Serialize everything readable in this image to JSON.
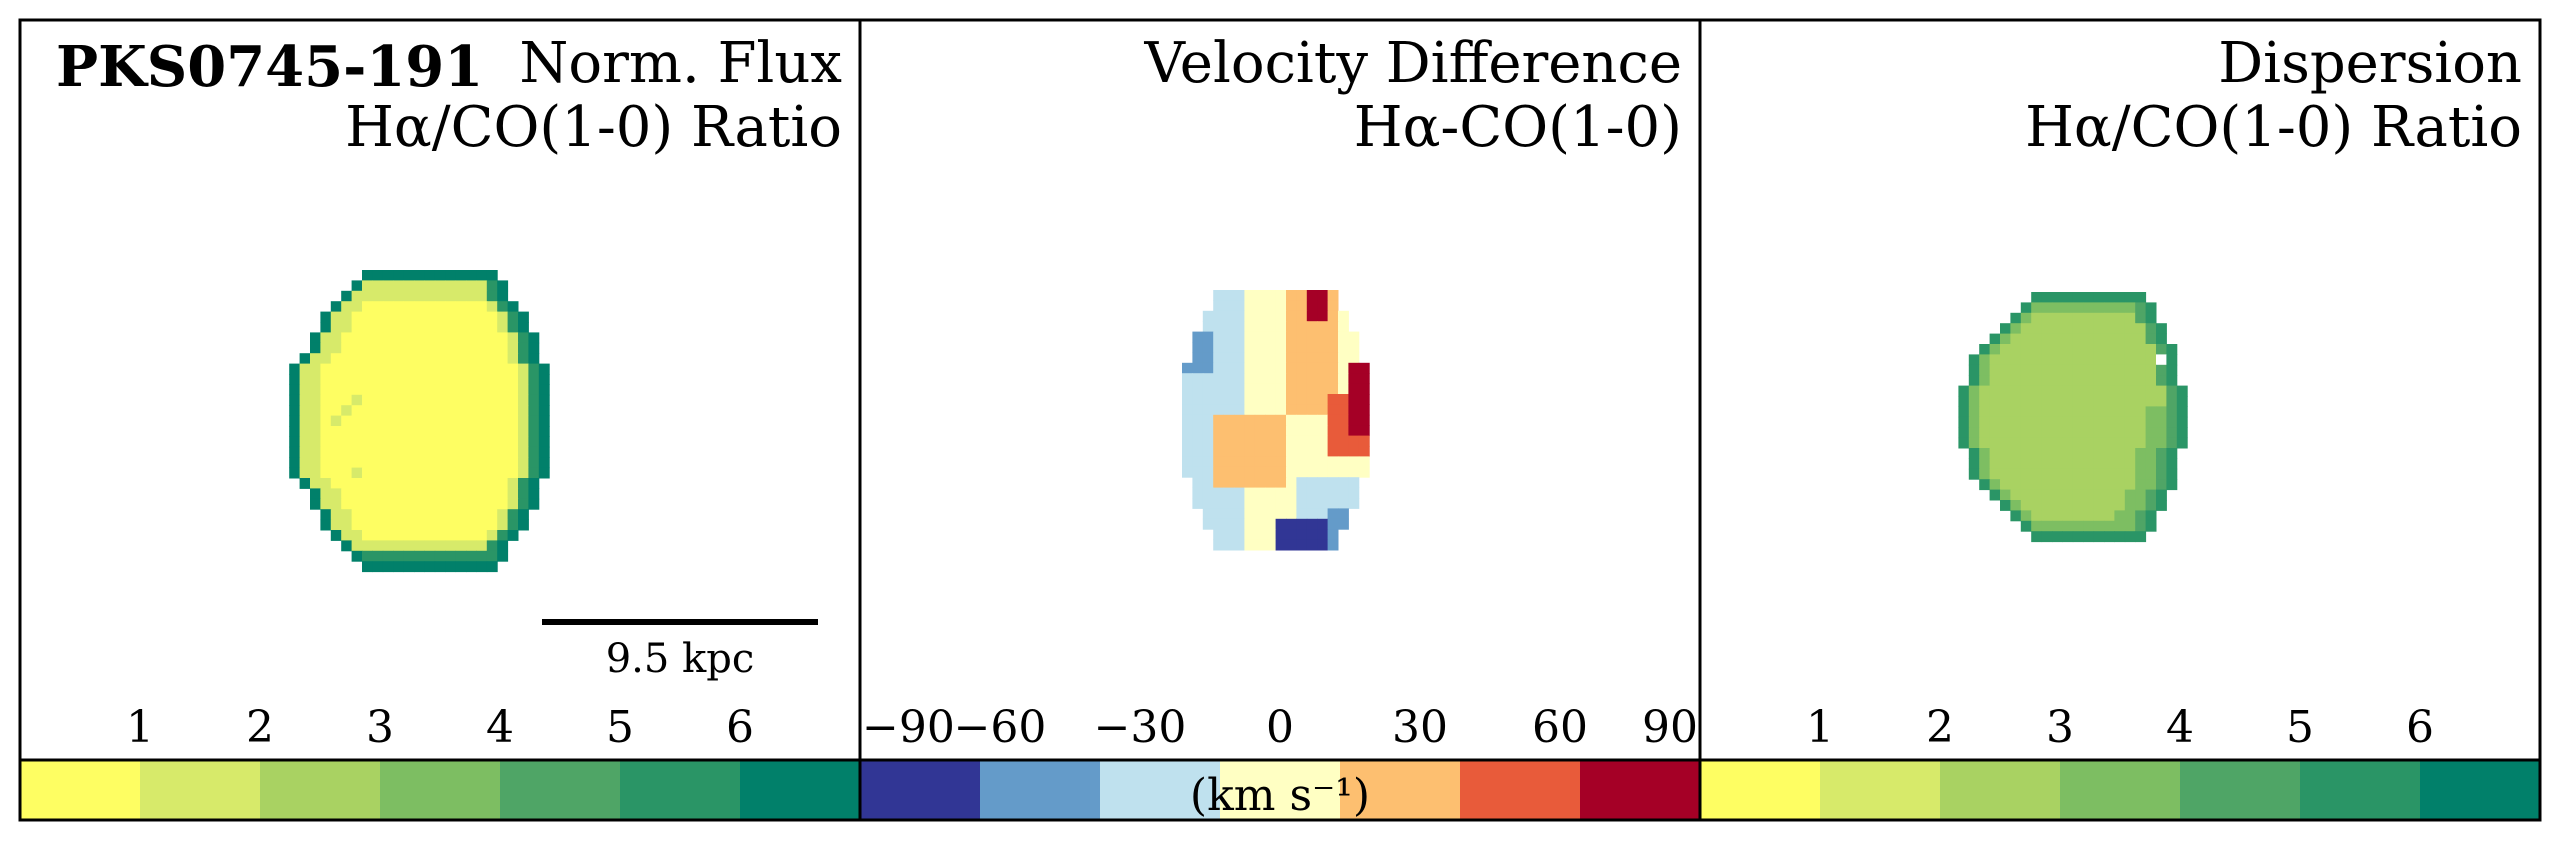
{
  "chart_data": [
    {
      "type": "heatmap",
      "object_name": "PKS0745-191",
      "title_lines": [
        "Norm. Flux",
        "Hα/CO(1-0) Ratio"
      ],
      "scale_bar_label": "9.5 kpc",
      "colorbar": {
        "ticks": [
          "1",
          "2",
          "3",
          "4",
          "5",
          "6"
        ],
        "colors": [
          "#fefe62",
          "#d7ea6a",
          "#a9d262",
          "#7dbe62",
          "#4fa566",
          "#2a9566",
          "#01806a"
        ]
      }
    },
    {
      "type": "heatmap",
      "title_lines": [
        "Velocity Difference",
        "Hα-CO(1-0)"
      ],
      "colorbar": {
        "ticks": [
          "−90",
          "−60",
          "−30",
          "0",
          "30",
          "60",
          "90"
        ],
        "unit": "(km s⁻¹)",
        "colors": [
          "#313695",
          "#649bc9",
          "#bfe1ee",
          "#ffffc3",
          "#fdbf70",
          "#e85b3a",
          "#a50026"
        ]
      }
    },
    {
      "type": "heatmap",
      "title_lines": [
        "Dispersion",
        "Hα/CO(1-0) Ratio"
      ],
      "colorbar": {
        "ticks": [
          "1",
          "2",
          "3",
          "4",
          "5",
          "6"
        ],
        "colors": [
          "#fefe62",
          "#d7ea6a",
          "#a9d262",
          "#7dbe62",
          "#4fa566",
          "#2a9566",
          "#01806a"
        ]
      }
    }
  ]
}
